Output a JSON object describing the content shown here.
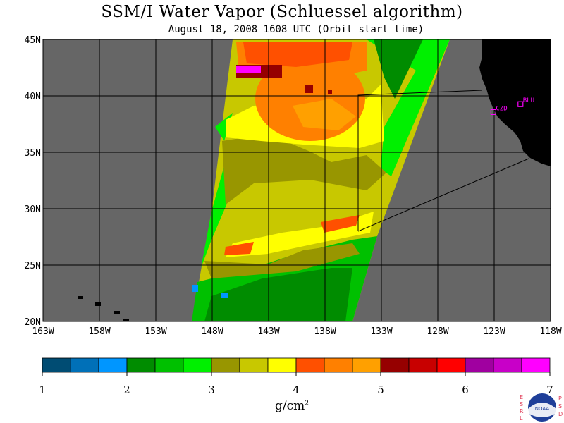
{
  "title": "SSM/I Water Vapor (Schluessel algorithm)",
  "subtitle": "August 18, 2008  1608 UTC  (Orbit start time)",
  "map": {
    "lat_labels": [
      "45N",
      "40N",
      "35N",
      "30N",
      "25N",
      "20N"
    ],
    "lon_labels": [
      "163W",
      "158W",
      "153W",
      "148W",
      "143W",
      "138W",
      "133W",
      "128W",
      "123W",
      "118W"
    ],
    "stations": [
      {
        "code": "CZD",
        "lon": -123.1,
        "lat": 38.6
      },
      {
        "code": "BLU",
        "lon": -120.7,
        "lat": 39.3
      }
    ],
    "colors": {
      "no_data": "#666666",
      "land": "#000000",
      "station": "#ff00ff"
    }
  },
  "colorbar": {
    "tick_labels": [
      "1",
      "2",
      "3",
      "4",
      "5",
      "6",
      "7"
    ],
    "colors": [
      "#004c73",
      "#0070b8",
      "#0096ff",
      "#008c00",
      "#00c000",
      "#00f000",
      "#989600",
      "#c8c800",
      "#ffff00",
      "#ff5000",
      "#ff8000",
      "#ffa000",
      "#960000",
      "#c80000",
      "#ff0000",
      "#a000a0",
      "#c800c8",
      "#ff00ff"
    ],
    "unit": "g/cm",
    "unit_exp": "2"
  },
  "logo": {
    "left_letters": [
      "E",
      "S",
      "R",
      "L"
    ],
    "right_letters": [
      "P",
      "S",
      "D"
    ],
    "center_text": "NOAA"
  }
}
